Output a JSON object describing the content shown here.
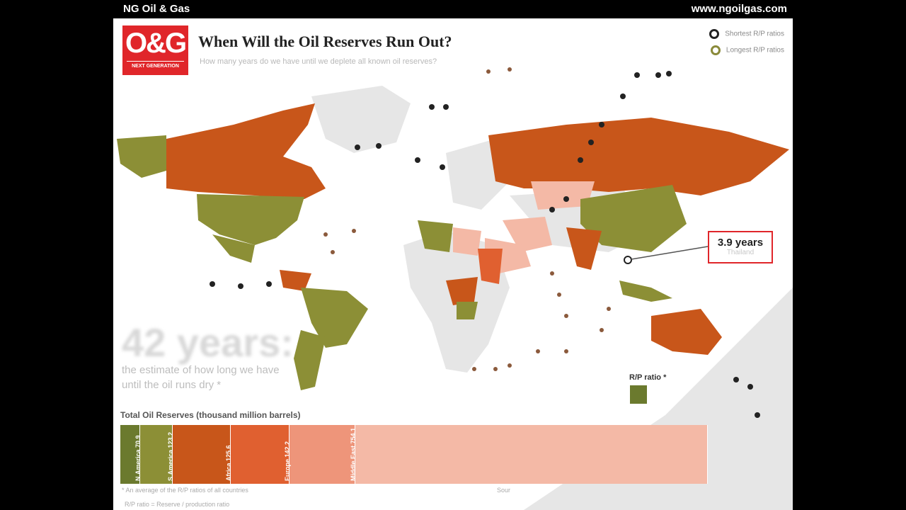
{
  "site": {
    "name": "NG Oil & Gas",
    "url": "www.ngoilgas.com"
  },
  "logo": {
    "mark": "O&G",
    "tagline": "NEXT GENERATION"
  },
  "title": "When Will the Oil Reserves Run Out?",
  "subtitle": "How many years do we have until we deplete all known oil reserves?",
  "legend": [
    {
      "label": "Shortest R/P ratios",
      "color": "#222222"
    },
    {
      "label": "Longest R/P ratios",
      "color": "#8a8a3a"
    }
  ],
  "callout": {
    "value": "3.9 years",
    "country": "Thailand"
  },
  "headline": {
    "value": "42 years:",
    "text": "the estimate of how long we have until the oil runs dry *"
  },
  "rp_label": "R/P ratio *",
  "reserves": {
    "title": "Total Oil Reserves (thousand million barrels)",
    "regions": [
      {
        "name": "Asia Pacific",
        "value": 42.0,
        "label": "42.0",
        "color": "#6b7a2e"
      },
      {
        "name": "N.America",
        "value": 70.9,
        "label": "70.9",
        "color": "#8c8f36"
      },
      {
        "name": "S.America",
        "value": 123.2,
        "label": "123.2",
        "color": "#c8561a"
      },
      {
        "name": "Africa",
        "value": 125.6,
        "label": "125.6",
        "color": "#e06030"
      },
      {
        "name": "Europe",
        "value": 142.2,
        "label": "142.2",
        "color": "#ee957a"
      },
      {
        "name": "Middle East",
        "value": 754.1,
        "label": "754.1",
        "color": "#f4b9a6"
      }
    ]
  },
  "notes": {
    "footnote": "* An average of the R/P ratios of all countries",
    "definition": "R/P ratio = Reserve / production ratio",
    "source": "Sour"
  },
  "colors": {
    "brand": "#e0262a",
    "olive": "#8c8f36",
    "orange": "#c8561a",
    "salmon": "#f4b9a6",
    "land": "#e6e6e6"
  }
}
